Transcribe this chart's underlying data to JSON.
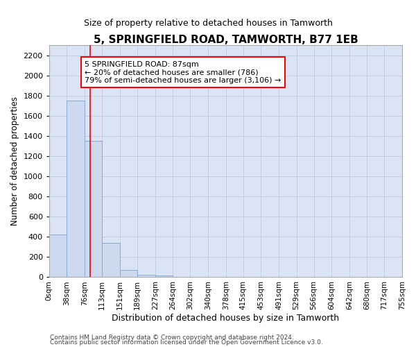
{
  "title": "5, SPRINGFIELD ROAD, TAMWORTH, B77 1EB",
  "subtitle": "Size of property relative to detached houses in Tamworth",
  "xlabel": "Distribution of detached houses by size in Tamworth",
  "ylabel": "Number of detached properties",
  "bar_color": "#ccd9ee",
  "bar_edge_color": "#88aad4",
  "grid_color": "#c0cfe8",
  "plot_bg_color": "#dae4f4",
  "red_line_x": 87,
  "annotation_line1": "5 SPRINGFIELD ROAD: 87sqm",
  "annotation_line2": "← 20% of detached houses are smaller (786)",
  "annotation_line3": "79% of semi-detached houses are larger (3,106) →",
  "bin_edges": [
    0,
    38,
    76,
    113,
    151,
    189,
    227,
    264,
    302,
    340,
    378,
    415,
    453,
    491,
    529,
    566,
    604,
    642,
    680,
    717,
    755
  ],
  "bar_heights": [
    420,
    1750,
    1350,
    340,
    75,
    25,
    15,
    0,
    0,
    0,
    0,
    0,
    0,
    0,
    0,
    0,
    0,
    0,
    0,
    0
  ],
  "ylim": [
    0,
    2300
  ],
  "yticks": [
    0,
    200,
    400,
    600,
    800,
    1000,
    1200,
    1400,
    1600,
    1800,
    2000,
    2200
  ],
  "footer_line1": "Contains HM Land Registry data © Crown copyright and database right 2024.",
  "footer_line2": "Contains public sector information licensed under the Open Government Licence v3.0.",
  "tick_labels": [
    "0sqm",
    "38sqm",
    "76sqm",
    "113sqm",
    "151sqm",
    "189sqm",
    "227sqm",
    "264sqm",
    "302sqm",
    "340sqm",
    "378sqm",
    "415sqm",
    "453sqm",
    "491sqm",
    "529sqm",
    "566sqm",
    "604sqm",
    "642sqm",
    "680sqm",
    "717sqm",
    "755sqm"
  ],
  "title_fontsize": 11,
  "subtitle_fontsize": 9
}
